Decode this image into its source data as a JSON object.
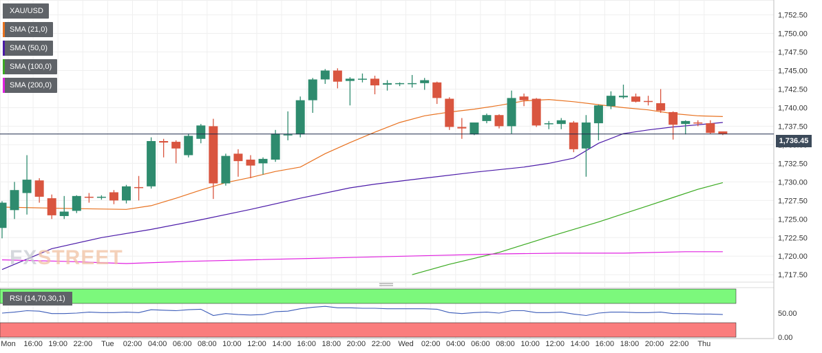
{
  "legend": {
    "symbol": "XAU/USD",
    "items": [
      {
        "label": "SMA (21,0)",
        "color": "#e8711f"
      },
      {
        "label": "SMA (50,0)",
        "color": "#4b1aa8"
      },
      {
        "label": "SMA (100,0)",
        "color": "#3aaa20"
      },
      {
        "label": "SMA (200,0)",
        "color": "#e020e0"
      }
    ]
  },
  "current_price_label": "1,736.45",
  "rsi_label": "RSI (14,70,30,1)",
  "watermark": {
    "prefix": "FX",
    "accent": "STREET"
  },
  "colors": {
    "up": "#2e8b6e",
    "down": "#d9553f",
    "rsi_line": "#3a5bb8",
    "overbought": "#7cf87c",
    "oversold": "#fa7d7d",
    "price_line": "#1f2a4a"
  },
  "chart_data": {
    "type": "candlestick",
    "instrument": "XAU/USD",
    "timeframe_minutes": 60,
    "ylim": [
      1716.5,
      1754.5
    ],
    "yticks": [
      "1,752.50",
      "1,750.00",
      "1,747.50",
      "1,745.00",
      "1,742.50",
      "1,740.00",
      "1,737.50",
      "1,735.00",
      "1,732.50",
      "1,730.00",
      "1,727.50",
      "1,725.00",
      "1,722.50",
      "1,720.00",
      "1,717.50"
    ],
    "xticks": [
      "Mon",
      "16:00",
      "19:00",
      "22:00",
      "Tue",
      "02:00",
      "04:00",
      "06:00",
      "08:00",
      "10:00",
      "12:00",
      "14:00",
      "16:00",
      "18:00",
      "20:00",
      "22:00",
      "Wed",
      "02:00",
      "04:00",
      "06:00",
      "08:00",
      "10:00",
      "12:00",
      "14:00",
      "16:00",
      "18:00",
      "20:00",
      "22:00",
      "Thu"
    ],
    "candles": [
      {
        "o": 1723.8,
        "h": 1727.4,
        "l": 1722.4,
        "c": 1727.2
      },
      {
        "o": 1726.2,
        "h": 1730.0,
        "l": 1725.0,
        "c": 1728.9
      },
      {
        "o": 1728.5,
        "h": 1733.6,
        "l": 1725.6,
        "c": 1730.3
      },
      {
        "o": 1730.2,
        "h": 1730.5,
        "l": 1727.2,
        "c": 1728.0
      },
      {
        "o": 1727.8,
        "h": 1728.3,
        "l": 1725.0,
        "c": 1725.5
      },
      {
        "o": 1725.4,
        "h": 1728.1,
        "l": 1725.0,
        "c": 1726.0
      },
      {
        "o": 1726.1,
        "h": 1728.2,
        "l": 1725.8,
        "c": 1728.1
      },
      {
        "o": 1728.0,
        "h": 1728.5,
        "l": 1727.2,
        "c": 1727.9
      },
      {
        "o": 1728.0,
        "h": 1728.2,
        "l": 1727.6,
        "c": 1728.0
      },
      {
        "o": 1728.6,
        "h": 1728.9,
        "l": 1727.0,
        "c": 1727.5
      },
      {
        "o": 1727.5,
        "h": 1729.6,
        "l": 1727.1,
        "c": 1729.4
      },
      {
        "o": 1729.3,
        "h": 1730.8,
        "l": 1727.5,
        "c": 1729.2
      },
      {
        "o": 1729.4,
        "h": 1736.0,
        "l": 1729.1,
        "c": 1735.5
      },
      {
        "o": 1735.5,
        "h": 1735.8,
        "l": 1733.3,
        "c": 1735.3
      },
      {
        "o": 1735.4,
        "h": 1735.6,
        "l": 1732.5,
        "c": 1734.5
      },
      {
        "o": 1733.6,
        "h": 1736.5,
        "l": 1733.3,
        "c": 1736.2
      },
      {
        "o": 1735.8,
        "h": 1737.8,
        "l": 1735.2,
        "c": 1737.6
      },
      {
        "o": 1737.5,
        "h": 1738.5,
        "l": 1727.7,
        "c": 1729.8
      },
      {
        "o": 1729.8,
        "h": 1733.8,
        "l": 1729.5,
        "c": 1733.5
      },
      {
        "o": 1733.8,
        "h": 1734.4,
        "l": 1730.7,
        "c": 1732.8
      },
      {
        "o": 1733.0,
        "h": 1733.6,
        "l": 1730.5,
        "c": 1732.2
      },
      {
        "o": 1732.5,
        "h": 1733.3,
        "l": 1731.0,
        "c": 1733.1
      },
      {
        "o": 1733.0,
        "h": 1737.0,
        "l": 1732.7,
        "c": 1736.5
      },
      {
        "o": 1736.4,
        "h": 1739.5,
        "l": 1735.6,
        "c": 1736.4
      },
      {
        "o": 1736.4,
        "h": 1741.5,
        "l": 1736.0,
        "c": 1741.0
      },
      {
        "o": 1741.0,
        "h": 1744.0,
        "l": 1739.3,
        "c": 1743.8
      },
      {
        "o": 1743.8,
        "h": 1745.2,
        "l": 1743.2,
        "c": 1745.0
      },
      {
        "o": 1745.0,
        "h": 1745.3,
        "l": 1742.6,
        "c": 1743.5
      },
      {
        "o": 1743.6,
        "h": 1744.1,
        "l": 1740.3,
        "c": 1743.9
      },
      {
        "o": 1743.9,
        "h": 1744.6,
        "l": 1743.4,
        "c": 1743.9
      },
      {
        "o": 1743.9,
        "h": 1744.3,
        "l": 1741.8,
        "c": 1743.0
      },
      {
        "o": 1743.1,
        "h": 1743.7,
        "l": 1742.3,
        "c": 1743.3
      },
      {
        "o": 1743.2,
        "h": 1743.4,
        "l": 1742.9,
        "c": 1743.3
      },
      {
        "o": 1743.3,
        "h": 1744.4,
        "l": 1742.7,
        "c": 1743.3
      },
      {
        "o": 1743.3,
        "h": 1744.0,
        "l": 1742.4,
        "c": 1743.7
      },
      {
        "o": 1743.4,
        "h": 1743.5,
        "l": 1740.5,
        "c": 1741.3
      },
      {
        "o": 1741.2,
        "h": 1741.4,
        "l": 1737.0,
        "c": 1737.4
      },
      {
        "o": 1737.4,
        "h": 1738.6,
        "l": 1735.8,
        "c": 1737.2
      },
      {
        "o": 1736.4,
        "h": 1738.0,
        "l": 1736.3,
        "c": 1738.0
      },
      {
        "o": 1738.2,
        "h": 1739.2,
        "l": 1737.9,
        "c": 1739.0
      },
      {
        "o": 1739.0,
        "h": 1739.1,
        "l": 1737.2,
        "c": 1737.5
      },
      {
        "o": 1737.5,
        "h": 1742.3,
        "l": 1736.5,
        "c": 1741.3
      },
      {
        "o": 1741.5,
        "h": 1741.9,
        "l": 1740.2,
        "c": 1741.0
      },
      {
        "o": 1741.2,
        "h": 1741.3,
        "l": 1737.4,
        "c": 1737.6
      },
      {
        "o": 1737.8,
        "h": 1738.2,
        "l": 1737.1,
        "c": 1737.9
      },
      {
        "o": 1737.8,
        "h": 1738.6,
        "l": 1737.1,
        "c": 1738.3
      },
      {
        "o": 1738.0,
        "h": 1738.2,
        "l": 1734.0,
        "c": 1734.4
      },
      {
        "o": 1734.5,
        "h": 1739.0,
        "l": 1730.7,
        "c": 1738.0
      },
      {
        "o": 1737.9,
        "h": 1740.4,
        "l": 1735.6,
        "c": 1740.3
      },
      {
        "o": 1740.2,
        "h": 1742.2,
        "l": 1739.8,
        "c": 1741.6
      },
      {
        "o": 1741.4,
        "h": 1743.1,
        "l": 1741.2,
        "c": 1741.6
      },
      {
        "o": 1741.5,
        "h": 1741.9,
        "l": 1740.7,
        "c": 1740.8
      },
      {
        "o": 1740.9,
        "h": 1741.6,
        "l": 1740.3,
        "c": 1740.8
      },
      {
        "o": 1740.6,
        "h": 1742.5,
        "l": 1739.3,
        "c": 1739.6
      },
      {
        "o": 1739.4,
        "h": 1739.5,
        "l": 1735.7,
        "c": 1737.7
      },
      {
        "o": 1737.8,
        "h": 1738.3,
        "l": 1736.4,
        "c": 1738.2
      },
      {
        "o": 1738.0,
        "h": 1738.3,
        "l": 1737.5,
        "c": 1737.9
      },
      {
        "o": 1737.9,
        "h": 1738.3,
        "l": 1736.5,
        "c": 1736.6
      },
      {
        "o": 1736.8,
        "h": 1736.8,
        "l": 1736.3,
        "c": 1736.45
      }
    ],
    "current_price": 1736.45,
    "sma": [
      {
        "period": 21,
        "points": [
          [
            0,
            1726.6
          ],
          [
            6,
            1726.4
          ],
          [
            10,
            1726.3
          ],
          [
            12,
            1726.8
          ],
          [
            14,
            1727.8
          ],
          [
            16,
            1728.9
          ],
          [
            18,
            1729.9
          ],
          [
            20,
            1730.6
          ],
          [
            22,
            1731.4
          ],
          [
            24,
            1732.0
          ],
          [
            26,
            1733.8
          ],
          [
            28,
            1735.3
          ],
          [
            30,
            1736.7
          ],
          [
            32,
            1738.0
          ],
          [
            34,
            1738.9
          ],
          [
            36,
            1739.4
          ],
          [
            38,
            1739.8
          ],
          [
            40,
            1740.3
          ],
          [
            42,
            1740.9
          ],
          [
            44,
            1741.1
          ],
          [
            46,
            1740.8
          ],
          [
            48,
            1740.4
          ],
          [
            50,
            1740.0
          ],
          [
            52,
            1739.7
          ],
          [
            54,
            1739.2
          ],
          [
            56,
            1738.9
          ],
          [
            58,
            1738.8
          ]
        ]
      },
      {
        "period": 50,
        "points": [
          [
            0,
            1718.2
          ],
          [
            4,
            1721.0
          ],
          [
            8,
            1722.5
          ],
          [
            12,
            1723.6
          ],
          [
            16,
            1724.9
          ],
          [
            20,
            1726.3
          ],
          [
            24,
            1727.8
          ],
          [
            28,
            1729.2
          ],
          [
            30,
            1729.7
          ],
          [
            34,
            1730.5
          ],
          [
            38,
            1731.3
          ],
          [
            42,
            1732.0
          ],
          [
            44,
            1732.5
          ],
          [
            46,
            1733.2
          ],
          [
            48,
            1735.2
          ],
          [
            50,
            1736.5
          ],
          [
            52,
            1737.0
          ],
          [
            54,
            1737.4
          ],
          [
            56,
            1737.7
          ],
          [
            58,
            1738.0
          ]
        ]
      },
      {
        "period": 100,
        "points": [
          [
            33,
            1717.5
          ],
          [
            36,
            1718.9
          ],
          [
            40,
            1720.5
          ],
          [
            44,
            1722.6
          ],
          [
            48,
            1724.6
          ],
          [
            52,
            1726.8
          ],
          [
            54,
            1727.9
          ],
          [
            56,
            1729.0
          ],
          [
            58,
            1729.9
          ]
        ]
      },
      {
        "period": 200,
        "points": [
          [
            0,
            1719.5
          ],
          [
            5,
            1719.3
          ],
          [
            10,
            1719.0
          ],
          [
            15,
            1719.3
          ],
          [
            20,
            1719.5
          ],
          [
            25,
            1719.7
          ],
          [
            30,
            1719.9
          ],
          [
            35,
            1720.1
          ],
          [
            40,
            1720.3
          ],
          [
            45,
            1720.4
          ],
          [
            50,
            1720.4
          ],
          [
            55,
            1720.6
          ],
          [
            58,
            1720.6
          ]
        ]
      }
    ],
    "rsi": {
      "label": "RSI (14,70,30,1)",
      "overbought": 70,
      "oversold": 30,
      "yticks": [
        "50.00",
        "0.00"
      ],
      "values": [
        50,
        52,
        55,
        54,
        49,
        49,
        50,
        52,
        51,
        51,
        52,
        51,
        57,
        56,
        55,
        57,
        58,
        45,
        49,
        47,
        46,
        47,
        53,
        54,
        59,
        62,
        64,
        61,
        61,
        60,
        60,
        59,
        59,
        59,
        59,
        58,
        51,
        49,
        51,
        52,
        50,
        55,
        55,
        51,
        51,
        52,
        48,
        45,
        50,
        52,
        52,
        51,
        51,
        52,
        49,
        49,
        48,
        48,
        47
      ]
    }
  }
}
